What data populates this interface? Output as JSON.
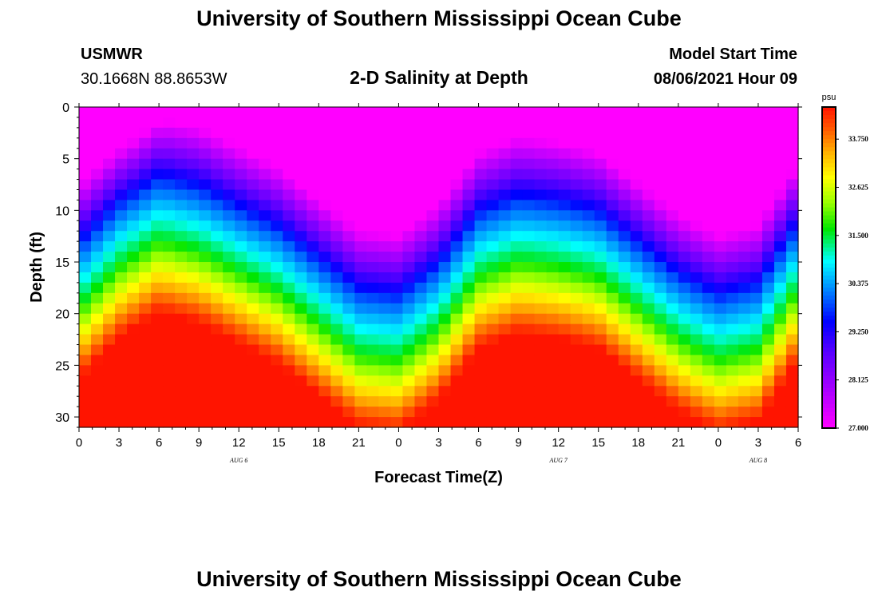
{
  "header": {
    "title": "University of Southern Mississippi Ocean Cube",
    "station": "USMWR",
    "coords": "30.1668N  88.8653W",
    "subtitle": "2-D Salinity at Depth",
    "model_label": "Model Start Time",
    "model_time": "08/06/2021 Hour 09"
  },
  "footer": {
    "title": "University of Southern Mississippi Ocean Cube"
  },
  "chart_data": {
    "type": "heatmap",
    "title": "2-D Salinity at Depth",
    "xlabel": "Forecast Time(Z)",
    "ylabel": "Depth (ft)",
    "x_ticks": [
      "0",
      "3",
      "6",
      "9",
      "12",
      "15",
      "18",
      "21",
      "0",
      "3",
      "6",
      "9",
      "12",
      "15",
      "18",
      "21",
      "0",
      "3",
      "6"
    ],
    "x_range_hours": [
      0,
      54
    ],
    "y_ticks": [
      "0",
      "5",
      "10",
      "15",
      "20",
      "25",
      "30"
    ],
    "y_range_ft": [
      0,
      31
    ],
    "date_labels": [
      {
        "label": "AUG 6",
        "hour": 12
      },
      {
        "label": "AUG 7",
        "hour": 36
      },
      {
        "label": "AUG 8",
        "hour": 51
      }
    ],
    "colorbar": {
      "units": "psu",
      "min": 27.0,
      "max": 34.5,
      "tick_labels": [
        "33.750",
        "32.625",
        "31.500",
        "30.375",
        "29.250",
        "28.125",
        "27.000"
      ],
      "tick_values": [
        33.75,
        32.625,
        31.5,
        30.375,
        29.25,
        28.125,
        27.0
      ]
    },
    "halocline_depth_ft": {
      "hours": [
        0,
        3,
        6,
        9,
        12,
        15,
        18,
        21,
        24,
        27,
        30,
        33,
        36,
        39,
        42,
        45,
        48,
        51,
        54
      ],
      "values": [
        17,
        13,
        10.5,
        11.5,
        13.5,
        15.5,
        18.5,
        21.5,
        22,
        19,
        14,
        12.5,
        13,
        14,
        17,
        20,
        22,
        21,
        15
      ]
    },
    "surface_salinity_psu": 27.2,
    "bottom_salinity_psu": 34.2
  }
}
